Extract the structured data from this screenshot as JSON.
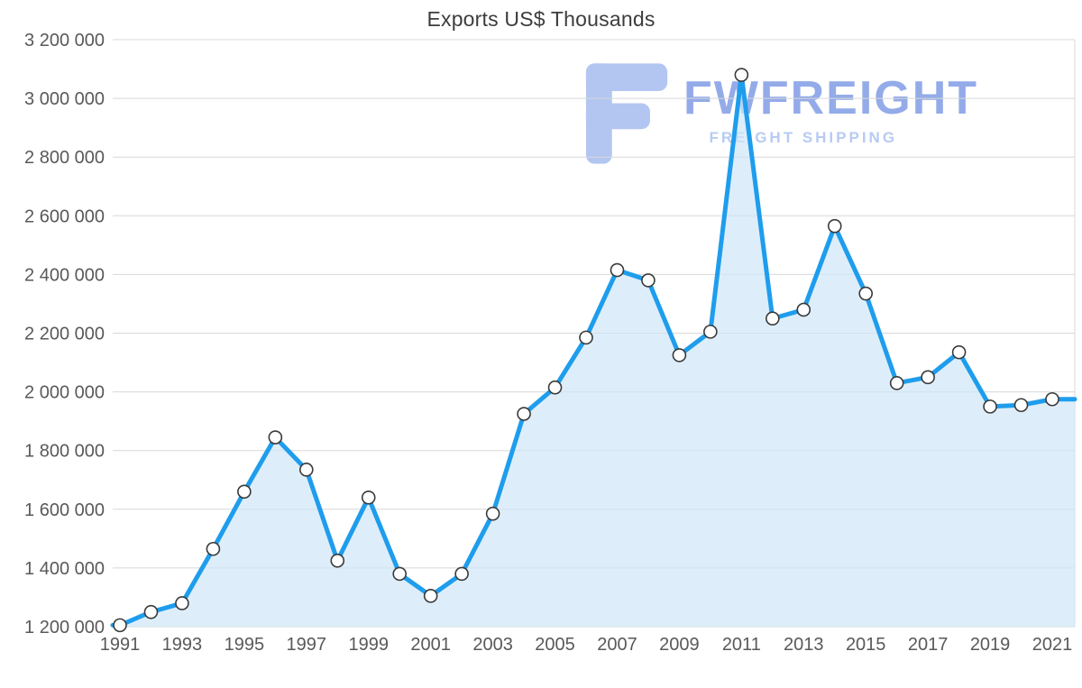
{
  "chart_data": {
    "type": "area",
    "title": "Exports US$ Thousands",
    "xlabel": "",
    "ylabel": "Exports US$ Thousands",
    "x": [
      1991,
      1992,
      1993,
      1994,
      1995,
      1996,
      1997,
      1998,
      1999,
      2000,
      2001,
      2002,
      2003,
      2004,
      2005,
      2006,
      2007,
      2008,
      2009,
      2010,
      2011,
      2012,
      2013,
      2014,
      2015,
      2016,
      2017,
      2018,
      2019,
      2020,
      2021
    ],
    "values": [
      1205000,
      1250000,
      1280000,
      1465000,
      1660000,
      1845000,
      1735000,
      1425000,
      1640000,
      1380000,
      1305000,
      1380000,
      1585000,
      1925000,
      2015000,
      2185000,
      2415000,
      2380000,
      2125000,
      2205000,
      3080000,
      2250000,
      2280000,
      2565000,
      2335000,
      2030000,
      2050000,
      2135000,
      1950000,
      1955000,
      1975000
    ],
    "ylim": [
      1200000,
      3200000
    ],
    "y_ticks": [
      1200000,
      1400000,
      1600000,
      1800000,
      2000000,
      2200000,
      2400000,
      2600000,
      2800000,
      3000000,
      3200000
    ],
    "y_tick_labels": [
      "1 200 000",
      "1 400 000",
      "1 600 000",
      "1 800 000",
      "2 000 000",
      "2 200 000",
      "2 400 000",
      "2 600 000",
      "2 800 000",
      "3 000 000",
      "3 200 000"
    ],
    "x_tick_labels": [
      "1991",
      "1993",
      "1995",
      "1997",
      "1999",
      "2001",
      "2003",
      "2005",
      "2007",
      "2009",
      "2011",
      "2013",
      "2015",
      "2017",
      "2019",
      "2021"
    ],
    "grid": "horizontal",
    "legend": "none",
    "line_color": "#1f9ded",
    "fill_color": "#cfe7f8",
    "marker_fill": "#ffffff",
    "marker_stroke": "#3a3a3a",
    "grid_color": "#d8d8d8",
    "axis_text_color": "#595959"
  },
  "watermark": {
    "brand": "FWFREIGHT",
    "tagline": "FREIGHT SHIPPING",
    "brand_color": "#93abe8",
    "tagline_color": "#b7cbf3",
    "icon_color": "#b3c6f1",
    "icon_name": "fwfreight-logo-icon"
  }
}
